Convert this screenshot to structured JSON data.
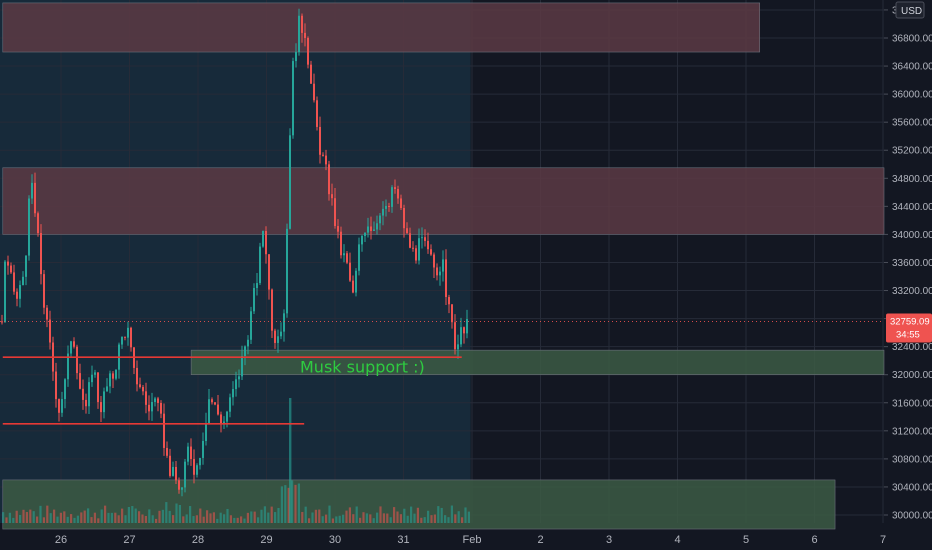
{
  "currency": "USD",
  "annotation": "Musk support :)",
  "price_badge": {
    "price": "32759.09",
    "countdown": "34:55"
  },
  "colors": {
    "background": "#131722",
    "up": "#26a69a",
    "down": "#ef5350",
    "support_line": "#e53935",
    "annotation": "#2ecc40"
  },
  "chart_data": {
    "type": "candlestick",
    "y_ticks_label": [
      "30000.00",
      "30400.00",
      "30800.00",
      "31200.00",
      "31600.00",
      "32000.00",
      "32400.00",
      "32800.00",
      "33200.00",
      "33600.00",
      "34000.00",
      "34400.00",
      "34800.00",
      "35200.00",
      "35600.00",
      "36000.00",
      "36400.00",
      "36800.00",
      "3..."
    ],
    "x_ticks": [
      "26",
      "27",
      "28",
      "29",
      "30",
      "31",
      "Feb",
      "2",
      "3",
      "4",
      "5",
      "6",
      "7"
    ],
    "ylim": [
      29800,
      37300
    ],
    "zones": [
      {
        "name": "resistance-zone-top",
        "y_from": 36600,
        "y_to": 37300,
        "x_from": "25.15",
        "x_to": "5.2",
        "color": "#5c3a44"
      },
      {
        "name": "resistance-zone-mid",
        "y_from": 34000,
        "y_to": 34950,
        "x_from": "25.15",
        "x_to": "7.8",
        "color": "#5c3a44"
      },
      {
        "name": "support-zone-musk",
        "y_from": 32000,
        "y_to": 32350,
        "x_from": "27.9",
        "x_to": "7.8",
        "color": "#3c5a44"
      },
      {
        "name": "support-zone-bottom",
        "y_from": 29800,
        "y_to": 30500,
        "x_from": "25.15",
        "x_to": "6.3",
        "color": "#3c5a44"
      }
    ],
    "lines": [
      {
        "name": "musk-support-line",
        "y": 32250,
        "x_from": "25.15",
        "x_to": "31.85"
      },
      {
        "name": "lower-support-line",
        "y": 31300,
        "x_from": "25.15",
        "x_to": "29.55"
      }
    ],
    "current_price": 32759.09,
    "close_path": [
      [
        25.15,
        33700
      ],
      [
        25.25,
        33350
      ],
      [
        25.35,
        33050
      ],
      [
        25.45,
        33500
      ],
      [
        25.55,
        34800
      ],
      [
        25.65,
        33900
      ],
      [
        25.75,
        32900
      ],
      [
        25.85,
        32200
      ],
      [
        25.95,
        31500
      ],
      [
        26.05,
        31900
      ],
      [
        26.15,
        32700
      ],
      [
        26.25,
        31900
      ],
      [
        26.35,
        31450
      ],
      [
        26.45,
        32200
      ],
      [
        26.55,
        31500
      ],
      [
        26.65,
        31800
      ],
      [
        26.75,
        32000
      ],
      [
        26.85,
        32450
      ],
      [
        26.95,
        32700
      ],
      [
        27.05,
        32000
      ],
      [
        27.15,
        31850
      ],
      [
        27.25,
        31500
      ],
      [
        27.35,
        31650
      ],
      [
        27.45,
        31300
      ],
      [
        27.55,
        30700
      ],
      [
        27.65,
        30500
      ],
      [
        27.75,
        30350
      ],
      [
        27.85,
        31000
      ],
      [
        27.95,
        30600
      ],
      [
        28.05,
        31100
      ],
      [
        28.15,
        31700
      ],
      [
        28.25,
        31500
      ],
      [
        28.35,
        31300
      ],
      [
        28.45,
        31600
      ],
      [
        28.55,
        31900
      ],
      [
        28.65,
        32300
      ],
      [
        28.75,
        32800
      ],
      [
        28.85,
        33400
      ],
      [
        28.95,
        34200
      ],
      [
        29.05,
        32800
      ],
      [
        29.15,
        32400
      ],
      [
        29.25,
        33000
      ],
      [
        29.35,
        36200
      ],
      [
        29.45,
        37000
      ],
      [
        29.55,
        36900
      ],
      [
        29.65,
        36000
      ],
      [
        29.75,
        35300
      ],
      [
        29.85,
        34900
      ],
      [
        29.95,
        34400
      ],
      [
        30.05,
        33800
      ],
      [
        30.15,
        33600
      ],
      [
        30.25,
        33100
      ],
      [
        30.35,
        33900
      ],
      [
        30.45,
        34200
      ],
      [
        30.55,
        34100
      ],
      [
        30.65,
        34400
      ],
      [
        30.75,
        34300
      ],
      [
        30.85,
        34700
      ],
      [
        30.95,
        34300
      ],
      [
        31.05,
        33900
      ],
      [
        31.15,
        33700
      ],
      [
        31.25,
        33900
      ],
      [
        31.35,
        33700
      ],
      [
        31.45,
        33500
      ],
      [
        31.55,
        33600
      ],
      [
        31.65,
        32900
      ],
      [
        31.75,
        32400
      ],
      [
        31.85,
        32600
      ],
      [
        31.95,
        32760
      ]
    ]
  }
}
